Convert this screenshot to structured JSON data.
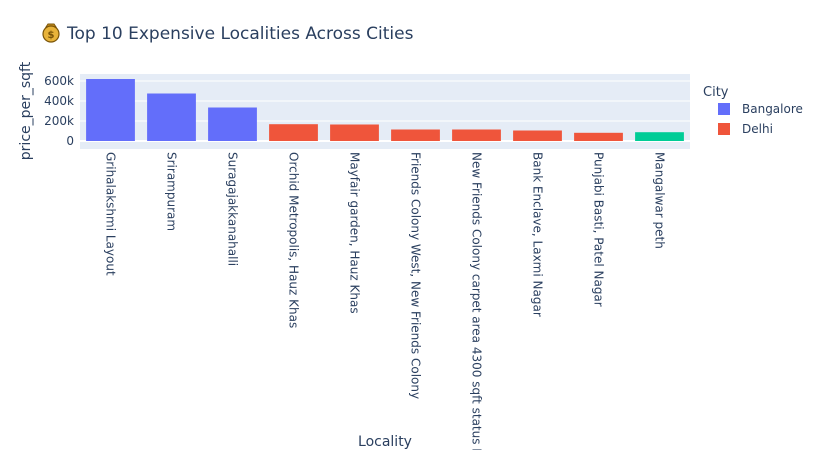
{
  "chart_data": {
    "type": "bar",
    "title_icon": "money-bag-icon",
    "title": "Top 10 Expensive Localities Across Cities",
    "xlabel": "Locality",
    "ylabel": "price_per_sqft",
    "ylim": [
      0,
      670000
    ],
    "yticks": [
      0,
      200000,
      400000,
      600000
    ],
    "ytick_labels": [
      "0",
      "200k",
      "400k",
      "600k"
    ],
    "grid": true,
    "legend_title": "City",
    "legend_position": "right",
    "categories": [
      "Grihalakshmi Layout",
      "Srirampuram",
      "Suragajakkanahalli",
      "Orchid Metropolis, Hauz Khas",
      "Mayfair garden, Hauz Khas",
      "Friends Colony West, New Friends Colony",
      "New Friends Colony carpet area 4300 sqft status I",
      "Bank Enclave, Laxmi Nagar",
      "Punjabi Basti, Patel Nagar",
      "Mangalwar peth"
    ],
    "values": [
      620000,
      475000,
      335000,
      168000,
      165000,
      115000,
      115000,
      105000,
      82000,
      88000
    ],
    "bar_series": [
      "Bangalore",
      "Bangalore",
      "Bangalore",
      "Delhi",
      "Delhi",
      "Delhi",
      "Delhi",
      "Delhi",
      "Delhi",
      null
    ],
    "series": [
      {
        "name": "Bangalore",
        "color": "#636efa"
      },
      {
        "name": "Delhi",
        "color": "#ef553b"
      }
    ],
    "unlisted_bar_color": "#00cc96"
  }
}
